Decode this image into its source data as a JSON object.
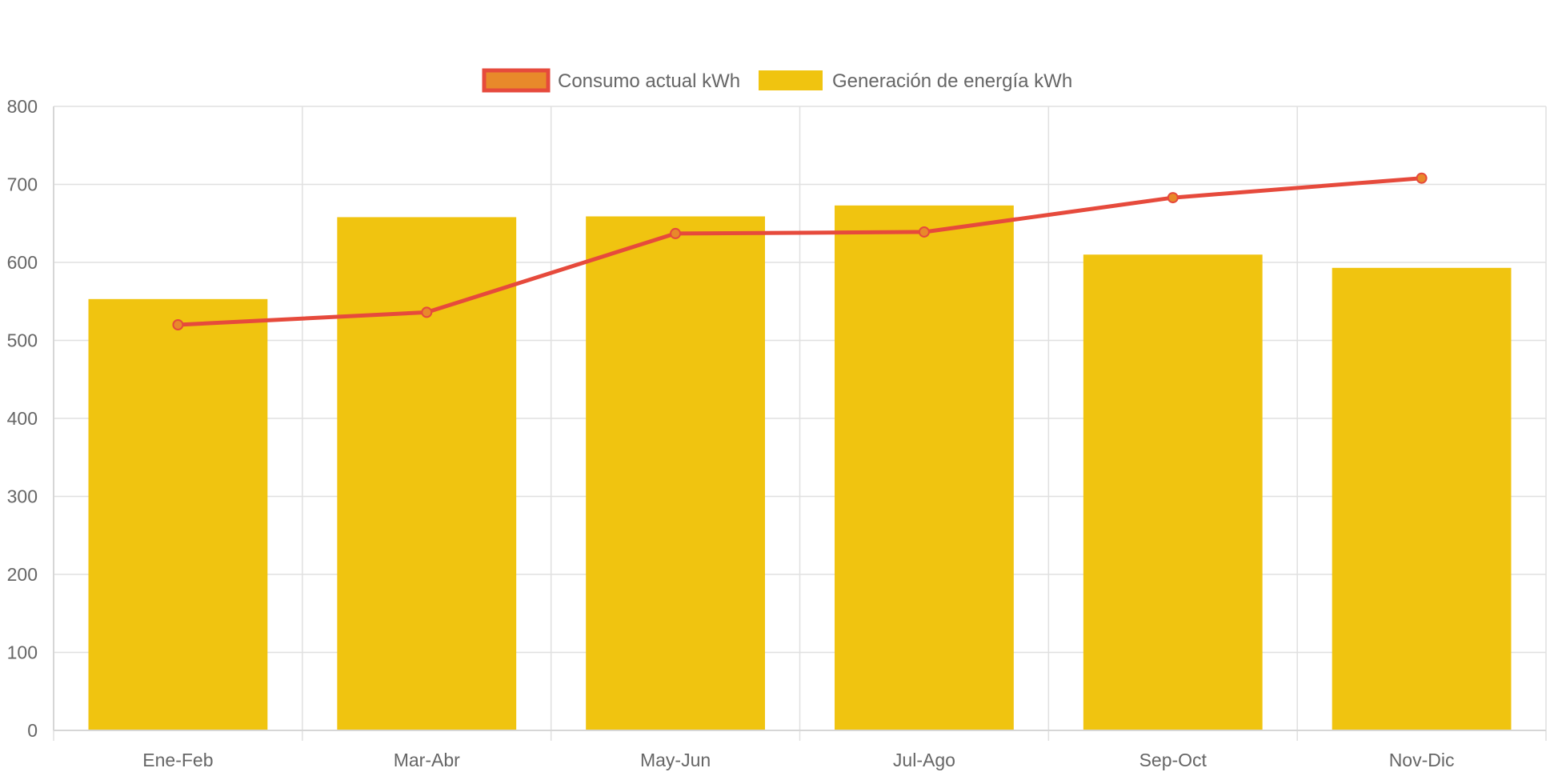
{
  "chart_data": {
    "type": "bar",
    "categories": [
      "Ene-Feb",
      "Mar-Abr",
      "May-Jun",
      "Jul-Ago",
      "Sep-Oct",
      "Nov-Dic"
    ],
    "series": [
      {
        "name": "Consumo actual kWh",
        "type": "line",
        "values": [
          520,
          536,
          637,
          639,
          683,
          708
        ],
        "color": "#e64a3c",
        "point_fill": "#e8892a"
      },
      {
        "name": "Generación de energía kWh",
        "type": "bar",
        "values": [
          553,
          658,
          659,
          673,
          610,
          593
        ],
        "color": "#f0c410"
      }
    ],
    "yticks": [
      "0",
      "100",
      "200",
      "300",
      "400",
      "500",
      "600",
      "700",
      "800"
    ],
    "ylim": [
      0,
      800
    ],
    "grid": true,
    "legend": "top-center",
    "title": "",
    "xlabel": "",
    "ylabel": ""
  }
}
